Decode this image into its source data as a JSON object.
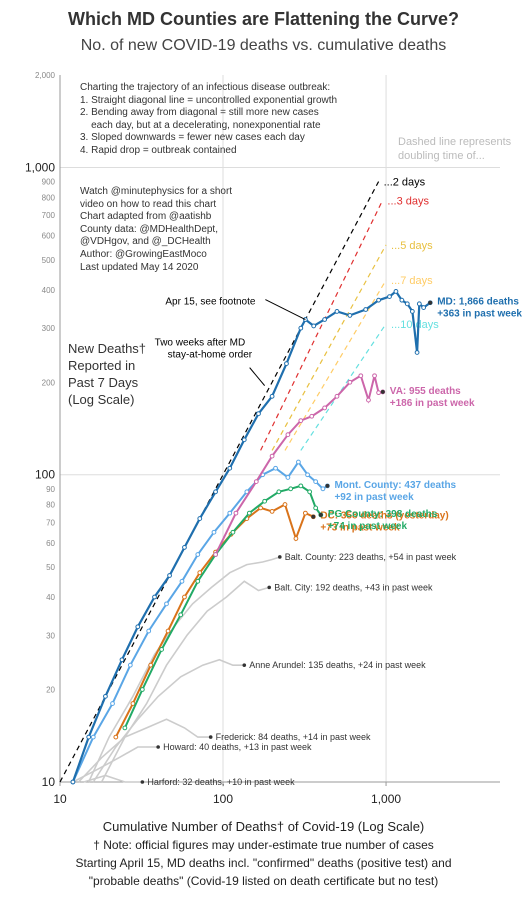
{
  "title": "Which MD Counties are Flattening the Curve?",
  "subtitle": "No. of new COVID-19 deaths vs. cumulative deaths",
  "info_lines": [
    "Charting the trajectory of an infectious disease outbreak:",
    "1. Straight diagonal line = uncontrolled exponential growth",
    "2. Bending away from diagonal = still more new cases",
    "    each day, but at a decelerating, nonexponential rate",
    "3. Sloped downwards = fewer new cases each day",
    "4. Rapid drop = outbreak contained"
  ],
  "credit_lines": [
    "Watch @minutephysics for a short",
    "video on how to read this chart",
    "Chart adapted from @aatishb",
    "County data: @MDHealthDept,",
    "@VDHgov, and @_DCHealth",
    "Author: @GrowingEastMoco",
    "Last updated May 14 2020"
  ],
  "ylabel_lines": [
    "New Deaths†",
    "Reported in",
    "Past 7 Days",
    "(Log Scale)"
  ],
  "xlabel": "Cumulative Number of Deaths† of Covid-19 (Log Scale)",
  "footnotes": [
    "† Note: official figures may under-estimate true number of cases",
    "Starting April 15, MD deaths incl. \"confirmed\" deaths (positive test) and",
    "\"probable deaths\" (Covid-19  listed on death certificate but no test)"
  ],
  "dash_note_lines": [
    "Dashed line represents",
    "doubling time of..."
  ],
  "chart_data": {
    "type": "line",
    "x_scale": "log",
    "y_scale": "log",
    "xlim": [
      10,
      5000
    ],
    "ylim": [
      10,
      2000
    ],
    "x_ticks": [
      10,
      100,
      1000
    ],
    "x_tick_labels": [
      "10",
      "100",
      "1,000"
    ],
    "y_ticks_major": [
      10,
      100,
      1000
    ],
    "y_tick_labels_major": [
      "10",
      "100",
      "1,000"
    ],
    "y_ticks_minor": [
      20,
      30,
      40,
      50,
      60,
      70,
      80,
      90,
      200,
      300,
      400,
      500,
      600,
      700,
      800,
      900,
      2000
    ],
    "y_tick_labels_minor": [
      "20",
      "30",
      "40",
      "50",
      "60",
      "70",
      "80",
      "90",
      "200",
      "300",
      "400",
      "500",
      "600",
      "700",
      "800",
      "900",
      "2,000"
    ],
    "grid": true,
    "doubling_lines": [
      {
        "label": "2 days",
        "color": "#000000",
        "x": [
          10,
          900
        ],
        "y": [
          10,
          900
        ]
      },
      {
        "label": "3 days",
        "color": "#e03030",
        "x": [
          170,
          950
        ],
        "y": [
          120,
          780
        ]
      },
      {
        "label": "5 days",
        "color": "#e8c040",
        "x": [
          200,
          1000
        ],
        "y": [
          120,
          560
        ]
      },
      {
        "label": "7 days",
        "color": "#ffcc66",
        "x": [
          240,
          1000
        ],
        "y": [
          120,
          430
        ]
      },
      {
        "label": "10 days",
        "color": "#66e0e0",
        "x": [
          300,
          1000
        ],
        "y": [
          120,
          310
        ]
      }
    ],
    "series": [
      {
        "name": "MD",
        "color": "#1f6fae",
        "highlight": true,
        "label": [
          "MD: 1,866 deaths",
          "+363 in past week"
        ],
        "x": [
          12,
          15,
          19,
          24,
          30,
          38,
          47,
          58,
          72,
          90,
          110,
          135,
          165,
          200,
          245,
          300,
          320,
          360,
          420,
          500,
          600,
          750,
          900,
          1050,
          1150,
          1250,
          1350,
          1450,
          1550,
          1600,
          1700,
          1866
        ],
        "y": [
          10,
          14,
          19,
          25,
          32,
          40,
          47,
          58,
          72,
          88,
          105,
          130,
          158,
          180,
          230,
          300,
          320,
          305,
          320,
          340,
          330,
          345,
          370,
          380,
          395,
          370,
          360,
          340,
          250,
          360,
          350,
          363
        ]
      },
      {
        "name": "VA",
        "color": "#cc66aa",
        "highlight": true,
        "label": [
          "VA: 955 deaths",
          "+186 in past week"
        ],
        "x": [
          90,
          120,
          160,
          200,
          250,
          300,
          350,
          420,
          500,
          600,
          700,
          780,
          850,
          900,
          955
        ],
        "y": [
          55,
          75,
          95,
          115,
          135,
          150,
          155,
          165,
          180,
          200,
          210,
          175,
          210,
          185,
          186
        ]
      },
      {
        "name": "Mont. County",
        "color": "#5aa6e6",
        "highlight": true,
        "label": [
          "Mont. County: 437 deaths",
          "+92 in past week"
        ],
        "x": [
          12,
          16,
          21,
          27,
          35,
          45,
          56,
          70,
          88,
          110,
          140,
          175,
          210,
          250,
          290,
          330,
          370,
          410,
          437
        ],
        "y": [
          10,
          14,
          18,
          24,
          31,
          38,
          45,
          55,
          65,
          75,
          88,
          100,
          105,
          98,
          110,
          100,
          95,
          90,
          92
        ]
      },
      {
        "name": "PG County",
        "color": "#22aa66",
        "highlight": true,
        "label": [
          "PG County: 398 deaths",
          "+74 in past week"
        ],
        "x": [
          25,
          32,
          42,
          55,
          70,
          90,
          115,
          145,
          180,
          220,
          260,
          300,
          340,
          370,
          398
        ],
        "y": [
          15,
          20,
          27,
          35,
          45,
          55,
          65,
          75,
          82,
          88,
          90,
          92,
          88,
          78,
          74
        ]
      },
      {
        "name": "DC",
        "color": "#d9731a",
        "highlight": true,
        "label": [
          "DC: 358 deaths (yesterday)",
          "+73 in past week"
        ],
        "x": [
          22,
          28,
          36,
          46,
          58,
          72,
          90,
          112,
          140,
          170,
          200,
          240,
          280,
          320,
          358
        ],
        "y": [
          14,
          18,
          24,
          31,
          40,
          48,
          56,
          64,
          72,
          78,
          76,
          80,
          62,
          75,
          73
        ]
      },
      {
        "name": "Balt. County",
        "color": "#cccccc",
        "highlight": false,
        "label": [
          "Balt. County: 223 deaths, +54 in past week"
        ],
        "x": [
          15,
          20,
          28,
          38,
          50,
          65,
          85,
          110,
          140,
          175,
          200,
          223
        ],
        "y": [
          10,
          14,
          19,
          26,
          32,
          38,
          43,
          48,
          51,
          52,
          53,
          54
        ]
      },
      {
        "name": "Balt. City",
        "color": "#cccccc",
        "highlight": false,
        "label": [
          "Balt. City: 192 deaths, +43 in past week"
        ],
        "x": [
          18,
          25,
          34,
          45,
          60,
          80,
          105,
          135,
          165,
          192
        ],
        "y": [
          10,
          14,
          18,
          24,
          30,
          36,
          40,
          45,
          42,
          43
        ]
      },
      {
        "name": "Anne Arundel",
        "color": "#cccccc",
        "highlight": false,
        "label": [
          "Anne Arundel: 135 deaths, +24 in past week"
        ],
        "x": [
          16,
          22,
          30,
          40,
          55,
          75,
          95,
          115,
          135
        ],
        "y": [
          10,
          13,
          16,
          19,
          22,
          24,
          25,
          24,
          24
        ]
      },
      {
        "name": "Frederick",
        "color": "#cccccc",
        "highlight": false,
        "label": [
          "Frederick: 84 deaths, +14 in past week"
        ],
        "x": [
          13,
          18,
          25,
          34,
          45,
          58,
          70,
          84
        ],
        "y": [
          10,
          12,
          14,
          15,
          16,
          15,
          14,
          14
        ]
      },
      {
        "name": "Howard",
        "color": "#cccccc",
        "highlight": false,
        "label": [
          "Howard: 40 deaths, +13 in past week"
        ],
        "x": [
          12,
          17,
          23,
          30,
          36,
          40
        ],
        "y": [
          10,
          11,
          12,
          13,
          13,
          13
        ]
      },
      {
        "name": "Harford",
        "color": "#cccccc",
        "highlight": false,
        "label": [
          "Harford: 32 deaths, +10 in past week"
        ],
        "x": [
          14,
          19,
          25,
          32
        ],
        "y": [
          10,
          10.5,
          10,
          10
        ]
      }
    ],
    "annotations": [
      {
        "text": "Apr 15, see footnote",
        "x": 320,
        "y": 320
      },
      {
        "text": "Two weeks after MD stay-at-home order",
        "x": 180,
        "y": 195
      }
    ]
  }
}
